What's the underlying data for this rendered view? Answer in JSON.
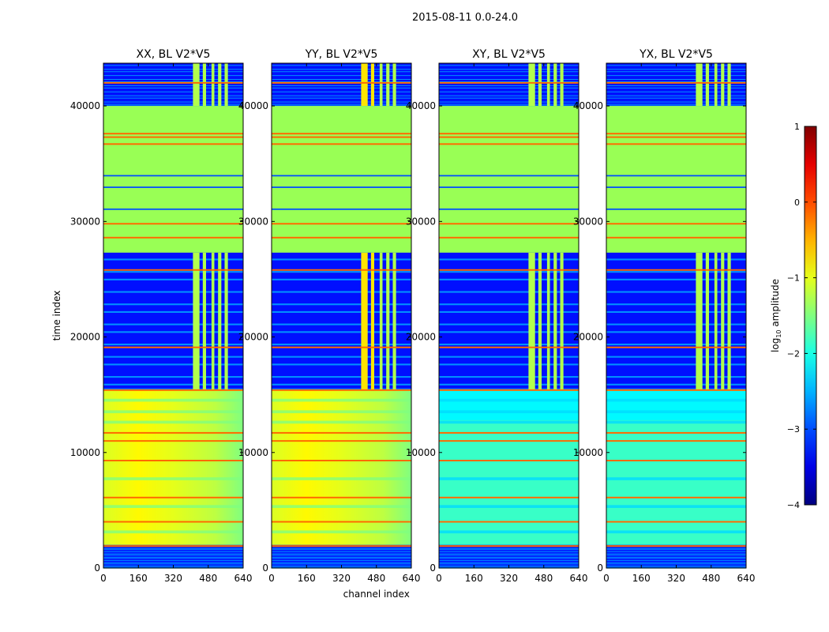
{
  "chart_data": {
    "type": "heatmap",
    "suptitle": "2015-08-11 0.0-24.0",
    "panels": [
      {
        "title": "XX, BL V2*V5",
        "xlabel": "",
        "ylabel": "time index",
        "pol": "parallel"
      },
      {
        "title": "YY, BL V2*V5",
        "xlabel": "channel index",
        "ylabel": "",
        "pol": "parallel"
      },
      {
        "title": "XY, BL V2*V5",
        "xlabel": "",
        "ylabel": "",
        "pol": "cross"
      },
      {
        "title": "YX, BL V2*V5",
        "xlabel": "",
        "ylabel": "",
        "pol": "cross"
      }
    ],
    "xlim": [
      0,
      640
    ],
    "ylim": [
      0,
      43700
    ],
    "xticks": [
      0,
      160,
      320,
      480,
      640
    ],
    "yticks": [
      0,
      10000,
      20000,
      30000,
      40000
    ],
    "colorbar": {
      "label": "log10 amplitude",
      "label_main": "log",
      "label_sub": "10",
      "label_tail": " amplitude",
      "vmin": -4,
      "vmax": 1,
      "ticks": [
        -4,
        -3,
        -2,
        -1,
        0,
        1
      ],
      "ticklabels": [
        "−4",
        "−3",
        "−2",
        "−1",
        "0",
        "1"
      ],
      "colormap": "jet"
    },
    "regions": {
      "quiet_low": [
        0,
        2000
      ],
      "active_band": [
        2000,
        15400
      ],
      "noisy_mid": [
        15400,
        27300
      ],
      "flagged": [
        27300,
        40000
      ],
      "noisy_top": [
        40000,
        43700
      ],
      "rfi_channels": [
        [
          410,
          440
        ],
        [
          455,
          470
        ],
        [
          495,
          508
        ],
        [
          525,
          540
        ],
        [
          555,
          570
        ]
      ],
      "red_lines": [
        1900,
        4000,
        6100,
        9300,
        11000,
        11700,
        15400,
        19100,
        25800,
        28600,
        29800,
        36700,
        37300,
        37600,
        42000
      ]
    },
    "colors": {
      "flagged": "#99ff55",
      "bad_line": "#ff6a00"
    }
  }
}
